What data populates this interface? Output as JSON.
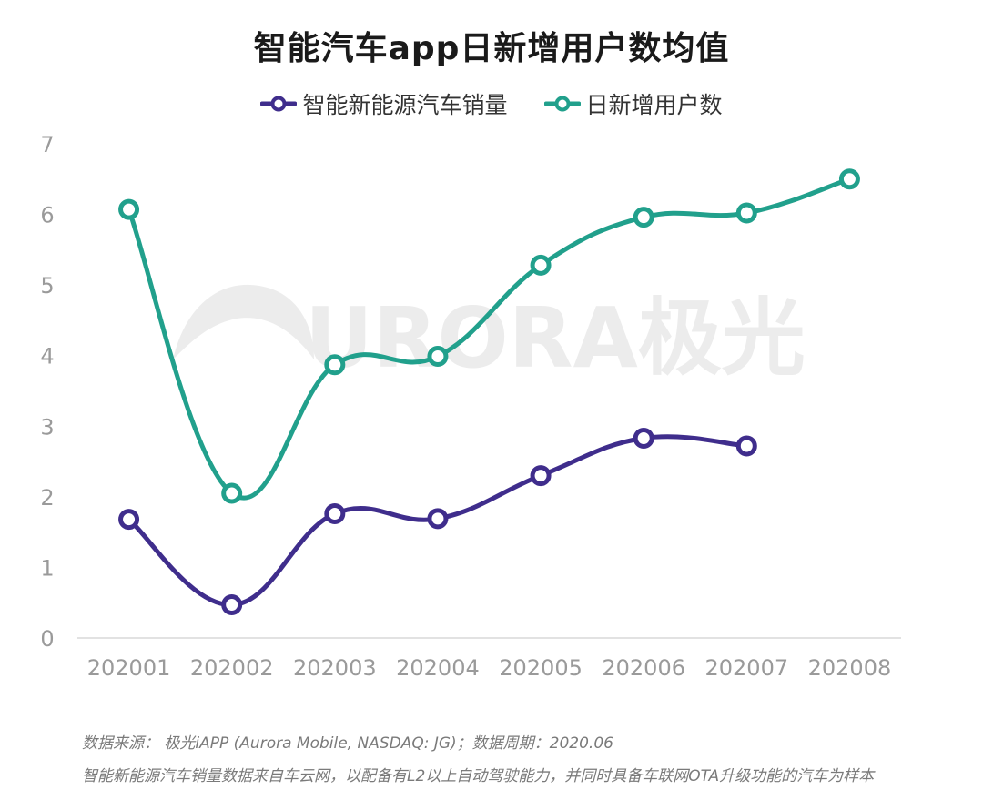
{
  "chart_data": {
    "type": "line",
    "title": "智能汽车app日新增用户数均值",
    "categories": [
      "202001",
      "202002",
      "202003",
      "202004",
      "202005",
      "202006",
      "202007",
      "202008"
    ],
    "series": [
      {
        "name": "智能新能源汽车销量",
        "color": "#3f2d8c",
        "values": [
          1.68,
          0.47,
          1.76,
          1.69,
          2.3,
          2.83,
          2.72,
          null
        ]
      },
      {
        "name": "日新增用户数",
        "color": "#21a08c",
        "values": [
          6.07,
          2.05,
          3.87,
          3.99,
          5.28,
          5.96,
          6.02,
          6.5
        ]
      }
    ],
    "ylim": [
      0,
      7
    ],
    "yticks": [
      0,
      1,
      2,
      3,
      4,
      5,
      6,
      7
    ],
    "grid": false,
    "legend": "top-center"
  },
  "watermark": "URORA极光",
  "footer": {
    "source": "数据来源： 极光iAPP (Aurora Mobile, NASDAQ: JG)；数据周期：2020.06",
    "note": "智能新能源汽车销量数据来自车云网，以配备有L2以上自动驾驶能力，并同时具备车联网OTA升级功能的汽车为样本"
  }
}
